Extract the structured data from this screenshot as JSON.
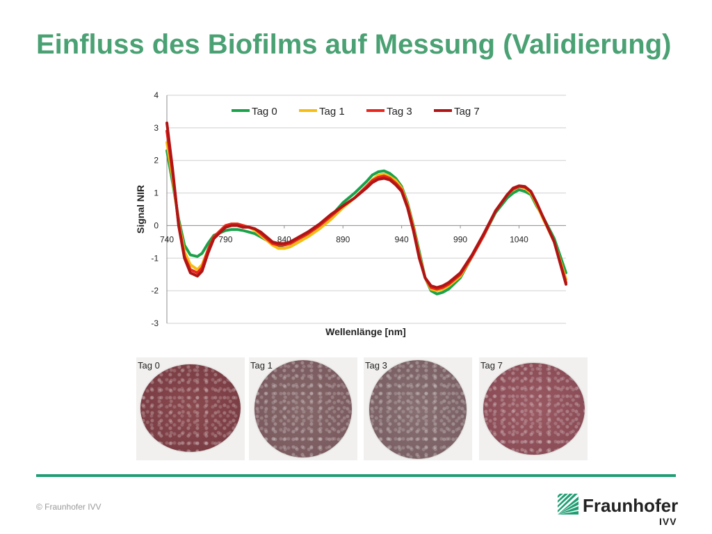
{
  "slide": {
    "title": "Einfluss des Biofilms auf Messung (Validierung)",
    "copyright": "© Fraunhofer IVV"
  },
  "logo": {
    "name": "Fraunhofer",
    "sub": "IVV",
    "color": "#1f9e74"
  },
  "photos": [
    {
      "label": "Tag 0"
    },
    {
      "label": "Tag 1"
    },
    {
      "label": "Tag 3"
    },
    {
      "label": "Tag 7"
    }
  ],
  "chart_data": {
    "type": "line",
    "xlabel": "Wellenlänge [nm]",
    "ylabel": "Signal NIR",
    "xlim": [
      740,
      1080
    ],
    "ylim": [
      -3,
      4
    ],
    "xticks": [
      740,
      790,
      840,
      890,
      940,
      990,
      1040
    ],
    "yticks": [
      -3,
      -2,
      -1,
      0,
      1,
      2,
      3,
      4
    ],
    "grid": true,
    "legend": "top",
    "series": [
      {
        "name": "Tag 0",
        "color": "#1aa24a",
        "x": [
          740,
          745,
          750,
          755,
          760,
          766,
          770,
          775,
          780,
          790,
          795,
          800,
          805,
          810,
          815,
          820,
          825,
          830,
          835,
          840,
          845,
          850,
          855,
          860,
          870,
          880,
          890,
          900,
          910,
          915,
          920,
          925,
          930,
          935,
          940,
          945,
          950,
          955,
          960,
          965,
          970,
          975,
          980,
          990,
          1000,
          1010,
          1020,
          1030,
          1035,
          1040,
          1045,
          1050,
          1055,
          1060,
          1070,
          1080
        ],
        "y": [
          2.3,
          1.3,
          0.2,
          -0.6,
          -0.9,
          -0.95,
          -0.85,
          -0.55,
          -0.3,
          -0.15,
          -0.12,
          -0.12,
          -0.15,
          -0.2,
          -0.25,
          -0.35,
          -0.45,
          -0.55,
          -0.65,
          -0.7,
          -0.65,
          -0.55,
          -0.45,
          -0.3,
          -0.02,
          0.3,
          0.7,
          1.0,
          1.35,
          1.55,
          1.65,
          1.68,
          1.6,
          1.45,
          1.2,
          0.7,
          0.0,
          -0.8,
          -1.6,
          -2.0,
          -2.1,
          -2.05,
          -1.95,
          -1.6,
          -0.95,
          -0.3,
          0.4,
          0.85,
          1.0,
          1.1,
          1.05,
          0.95,
          0.6,
          0.3,
          -0.4,
          -1.45
        ]
      },
      {
        "name": "Tag 1",
        "color": "#f5bd14",
        "x": [
          740,
          745,
          750,
          755,
          760,
          766,
          770,
          775,
          780,
          790,
          795,
          800,
          805,
          810,
          815,
          820,
          825,
          830,
          835,
          840,
          845,
          850,
          855,
          860,
          870,
          880,
          890,
          900,
          910,
          915,
          920,
          925,
          930,
          935,
          940,
          945,
          950,
          955,
          960,
          965,
          970,
          975,
          980,
          990,
          1000,
          1010,
          1020,
          1030,
          1035,
          1040,
          1045,
          1050,
          1055,
          1060,
          1070,
          1080
        ],
        "y": [
          2.55,
          1.45,
          0.1,
          -0.8,
          -1.2,
          -1.35,
          -1.2,
          -0.75,
          -0.35,
          0.0,
          0.05,
          0.05,
          0.0,
          -0.05,
          -0.15,
          -0.3,
          -0.45,
          -0.6,
          -0.7,
          -0.7,
          -0.65,
          -0.55,
          -0.45,
          -0.35,
          -0.1,
          0.2,
          0.55,
          0.85,
          1.2,
          1.4,
          1.55,
          1.58,
          1.5,
          1.38,
          1.15,
          0.65,
          -0.05,
          -0.9,
          -1.6,
          -1.95,
          -2.0,
          -1.95,
          -1.85,
          -1.55,
          -0.95,
          -0.3,
          0.45,
          0.95,
          1.1,
          1.2,
          1.15,
          1.0,
          0.65,
          0.25,
          -0.5,
          -1.65
        ]
      },
      {
        "name": "Tag 3",
        "color": "#e8261c",
        "x": [
          740,
          745,
          750,
          755,
          760,
          766,
          770,
          775,
          780,
          790,
          795,
          800,
          805,
          810,
          815,
          820,
          825,
          830,
          835,
          840,
          845,
          850,
          855,
          860,
          870,
          880,
          890,
          900,
          910,
          915,
          920,
          925,
          930,
          935,
          940,
          945,
          950,
          955,
          960,
          965,
          970,
          975,
          980,
          990,
          1000,
          1010,
          1020,
          1030,
          1035,
          1040,
          1045,
          1050,
          1055,
          1060,
          1070,
          1080
        ],
        "y": [
          2.9,
          1.6,
          0.05,
          -0.95,
          -1.35,
          -1.45,
          -1.3,
          -0.75,
          -0.35,
          0.0,
          0.05,
          0.05,
          0.0,
          -0.05,
          -0.1,
          -0.25,
          -0.4,
          -0.55,
          -0.6,
          -0.6,
          -0.55,
          -0.45,
          -0.35,
          -0.25,
          0.0,
          0.3,
          0.6,
          0.85,
          1.2,
          1.38,
          1.48,
          1.52,
          1.45,
          1.3,
          1.1,
          0.6,
          -0.1,
          -0.95,
          -1.6,
          -1.9,
          -1.95,
          -1.9,
          -1.8,
          -1.5,
          -0.95,
          -0.3,
          0.45,
          0.95,
          1.12,
          1.2,
          1.18,
          1.05,
          0.7,
          0.3,
          -0.5,
          -1.75
        ]
      },
      {
        "name": "Tag 7",
        "color": "#b01414",
        "x": [
          740,
          745,
          750,
          755,
          760,
          766,
          770,
          775,
          780,
          790,
          795,
          800,
          805,
          810,
          815,
          820,
          825,
          830,
          835,
          840,
          845,
          850,
          855,
          860,
          870,
          880,
          890,
          900,
          910,
          915,
          920,
          925,
          930,
          935,
          940,
          945,
          950,
          955,
          960,
          965,
          970,
          975,
          980,
          990,
          1000,
          1010,
          1020,
          1030,
          1035,
          1040,
          1045,
          1050,
          1055,
          1060,
          1070,
          1080
        ],
        "y": [
          3.15,
          1.7,
          0.0,
          -1.0,
          -1.45,
          -1.55,
          -1.4,
          -0.85,
          -0.4,
          -0.05,
          0.0,
          0.0,
          -0.05,
          -0.05,
          -0.1,
          -0.2,
          -0.35,
          -0.5,
          -0.55,
          -0.55,
          -0.5,
          -0.4,
          -0.3,
          -0.2,
          0.05,
          0.35,
          0.6,
          0.85,
          1.15,
          1.32,
          1.42,
          1.45,
          1.4,
          1.25,
          1.05,
          0.55,
          -0.15,
          -1.0,
          -1.6,
          -1.85,
          -1.9,
          -1.85,
          -1.75,
          -1.45,
          -0.9,
          -0.25,
          0.45,
          0.95,
          1.15,
          1.22,
          1.2,
          1.05,
          0.7,
          0.3,
          -0.5,
          -1.8
        ]
      }
    ]
  }
}
